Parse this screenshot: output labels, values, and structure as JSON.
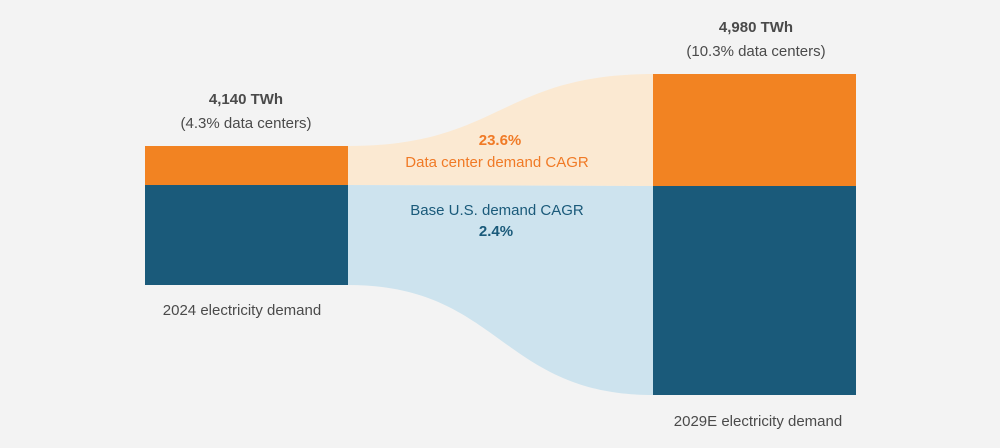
{
  "chart_data": {
    "type": "sankey",
    "title": "",
    "colors": {
      "data_center": "#f28322",
      "base": "#1a5a7a",
      "data_center_flow": "#fbe9d2",
      "base_flow": "#cde3ee",
      "text": "#4a4a4a"
    },
    "nodes": [
      {
        "label": "2024 electricity demand",
        "total": "4,140 TWh",
        "share": "(4.3% data centers)",
        "total_twh": 4140,
        "data_center_pct": 4.3
      },
      {
        "label": "2029E electricity demand",
        "total": "4,980 TWh",
        "share": "(10.3% data centers)",
        "total_twh": 4980,
        "data_center_pct": 10.3
      }
    ],
    "flows": [
      {
        "name": "Data center demand CAGR",
        "value": "23.6%"
      },
      {
        "name": "Base U.S. demand CAGR",
        "value": "2.4%"
      }
    ]
  }
}
